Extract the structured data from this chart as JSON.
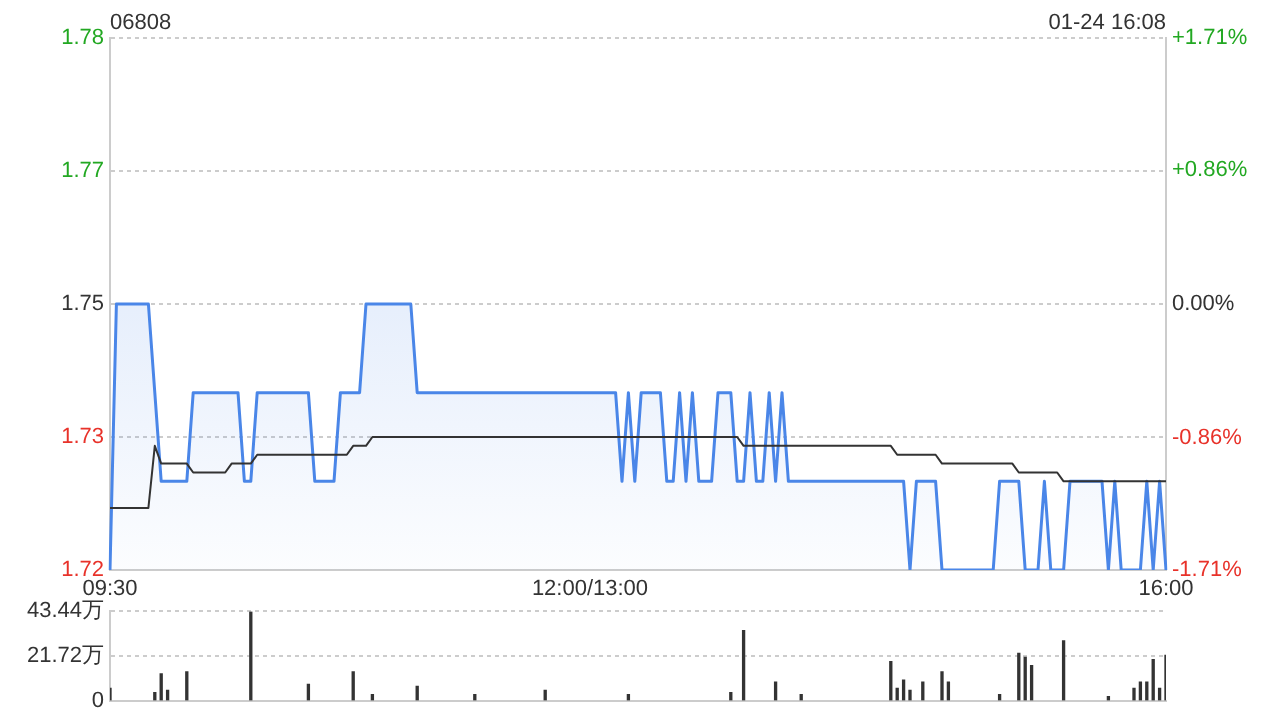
{
  "chart_data": [
    {
      "type": "line",
      "title": "06808",
      "annotations": [
        "01-24 16:08"
      ],
      "categories": [
        "09:30",
        null,
        null,
        null,
        null,
        null,
        null,
        null,
        null,
        null,
        null,
        null,
        null,
        null,
        null,
        null,
        null,
        null,
        null,
        null,
        null,
        null,
        null,
        null,
        null,
        null,
        null,
        null,
        null,
        null,
        null,
        null,
        null,
        null,
        null,
        null,
        null,
        null,
        null,
        null,
        null,
        null,
        null,
        null,
        null,
        null,
        null,
        null,
        null,
        null,
        null,
        null,
        null,
        null,
        null,
        null,
        null,
        null,
        null,
        null,
        null,
        null,
        null,
        null,
        null,
        null,
        null,
        null,
        null,
        null,
        null,
        null,
        null,
        null,
        null,
        "12:00/13:00",
        null,
        null,
        null,
        null,
        null,
        null,
        null,
        null,
        null,
        null,
        null,
        null,
        null,
        null,
        null,
        null,
        null,
        null,
        null,
        null,
        null,
        null,
        null,
        null,
        null,
        null,
        null,
        null,
        null,
        null,
        null,
        null,
        null,
        null,
        null,
        null,
        null,
        null,
        null,
        null,
        null,
        null,
        null,
        null,
        null,
        null,
        null,
        null,
        null,
        null,
        null,
        null,
        null,
        null,
        null,
        null,
        null,
        null,
        null,
        null,
        null,
        null,
        null,
        null,
        null,
        null,
        null,
        null,
        null,
        null,
        null,
        null,
        null,
        null,
        null,
        null,
        null,
        null,
        null,
        null,
        null,
        null,
        null,
        null,
        null,
        null,
        null,
        null,
        null,
        "16:00"
      ],
      "ylim": [
        1.72,
        1.78
      ],
      "yticks": [
        1.72,
        {
          "value": 1.735,
          "label": "1.73"
        },
        1.75,
        {
          "value": 1.765,
          "label": "1.77"
        },
        1.78
      ],
      "y2lim": [
        -1.71,
        1.71
      ],
      "y2ticks": [
        {
          "value": -1.71,
          "label": "-1.71%"
        },
        {
          "value": -0.86,
          "label": "-0.86%"
        },
        {
          "value": 0,
          "label": "0.00%"
        },
        {
          "value": 0.86,
          "label": "+0.86%"
        },
        {
          "value": 1.71,
          "label": "+1.71%"
        }
      ],
      "grid": "y",
      "series": [
        {
          "type": "area",
          "color": "#4a86e8",
          "values": [
            1.72,
            1.75,
            1.75,
            1.75,
            1.75,
            1.75,
            1.75,
            1.74,
            1.73,
            1.73,
            1.73,
            1.73,
            1.73,
            1.74,
            1.74,
            1.74,
            1.74,
            1.74,
            1.74,
            1.74,
            1.74,
            1.73,
            1.73,
            1.74,
            1.74,
            1.74,
            1.74,
            1.74,
            1.74,
            1.74,
            1.74,
            1.74,
            1.73,
            1.73,
            1.73,
            1.73,
            1.74,
            1.74,
            1.74,
            1.74,
            1.75,
            1.75,
            1.75,
            1.75,
            1.75,
            1.75,
            1.75,
            1.75,
            1.74,
            1.74,
            1.74,
            1.74,
            1.74,
            1.74,
            1.74,
            1.74,
            1.74,
            1.74,
            1.74,
            1.74,
            1.74,
            1.74,
            1.74,
            1.74,
            1.74,
            1.74,
            1.74,
            1.74,
            1.74,
            1.74,
            1.74,
            1.74,
            1.74,
            1.74,
            1.74,
            1.74,
            1.74,
            1.74,
            1.74,
            1.74,
            1.73,
            1.74,
            1.73,
            1.74,
            1.74,
            1.74,
            1.74,
            1.73,
            1.73,
            1.74,
            1.73,
            1.74,
            1.73,
            1.73,
            1.73,
            1.74,
            1.74,
            1.74,
            1.73,
            1.73,
            1.74,
            1.73,
            1.73,
            1.74,
            1.73,
            1.74,
            1.73,
            1.73,
            1.73,
            1.73,
            1.73,
            1.73,
            1.73,
            1.73,
            1.73,
            1.73,
            1.73,
            1.73,
            1.73,
            1.73,
            1.73,
            1.73,
            1.73,
            1.73,
            1.73,
            1.72,
            1.73,
            1.73,
            1.73,
            1.73,
            1.72,
            1.72,
            1.72,
            1.72,
            1.72,
            1.72,
            1.72,
            1.72,
            1.72,
            1.73,
            1.73,
            1.73,
            1.73,
            1.72,
            1.72,
            1.72,
            1.73,
            1.72,
            1.72,
            1.72,
            1.73,
            1.73,
            1.73,
            1.73,
            1.73,
            1.73,
            1.72,
            1.73,
            1.72,
            1.72,
            1.72,
            1.72,
            1.73,
            1.72,
            1.73,
            1.72
          ]
        },
        {
          "type": "line",
          "color": "#333333",
          "values": [
            1.727,
            1.727,
            1.727,
            1.727,
            1.727,
            1.727,
            1.727,
            1.734,
            1.732,
            1.732,
            1.732,
            1.732,
            1.732,
            1.731,
            1.731,
            1.731,
            1.731,
            1.731,
            1.731,
            1.732,
            1.732,
            1.732,
            1.732,
            1.733,
            1.733,
            1.733,
            1.733,
            1.733,
            1.733,
            1.733,
            1.733,
            1.733,
            1.733,
            1.733,
            1.733,
            1.733,
            1.733,
            1.733,
            1.734,
            1.734,
            1.734,
            1.735,
            1.735,
            1.735,
            1.735,
            1.735,
            1.735,
            1.735,
            1.735,
            1.735,
            1.735,
            1.735,
            1.735,
            1.735,
            1.735,
            1.735,
            1.735,
            1.735,
            1.735,
            1.735,
            1.735,
            1.735,
            1.735,
            1.735,
            1.735,
            1.735,
            1.735,
            1.735,
            1.735,
            1.735,
            1.735,
            1.735,
            1.735,
            1.735,
            1.735,
            1.735,
            1.735,
            1.735,
            1.735,
            1.735,
            1.735,
            1.735,
            1.735,
            1.735,
            1.735,
            1.735,
            1.735,
            1.735,
            1.735,
            1.735,
            1.735,
            1.735,
            1.735,
            1.735,
            1.735,
            1.735,
            1.735,
            1.735,
            1.735,
            1.734,
            1.734,
            1.734,
            1.734,
            1.734,
            1.734,
            1.734,
            1.734,
            1.734,
            1.734,
            1.734,
            1.734,
            1.734,
            1.734,
            1.734,
            1.734,
            1.734,
            1.734,
            1.734,
            1.734,
            1.734,
            1.734,
            1.734,
            1.734,
            1.733,
            1.733,
            1.733,
            1.733,
            1.733,
            1.733,
            1.733,
            1.732,
            1.732,
            1.732,
            1.732,
            1.732,
            1.732,
            1.732,
            1.732,
            1.732,
            1.732,
            1.732,
            1.732,
            1.731,
            1.731,
            1.731,
            1.731,
            1.731,
            1.731,
            1.731,
            1.73,
            1.73,
            1.73,
            1.73,
            1.73,
            1.73,
            1.73,
            1.73,
            1.73,
            1.73,
            1.73,
            1.73,
            1.73,
            1.73,
            1.73,
            1.73,
            1.73
          ]
        }
      ]
    },
    {
      "type": "bar",
      "color": "#333333",
      "tick_labels": "y",
      "grid": "y",
      "categories": [
        null,
        null,
        null,
        null,
        null,
        null,
        null,
        null,
        null,
        null,
        null,
        null,
        null,
        null,
        null,
        null,
        null,
        null,
        null,
        null,
        null,
        null,
        null,
        null,
        null,
        null,
        null,
        null,
        null,
        null,
        null,
        null,
        null,
        null,
        null,
        null,
        null,
        null,
        null,
        null,
        null,
        null,
        null,
        null,
        null,
        null,
        null,
        null,
        null,
        null,
        null,
        null,
        null,
        null,
        null,
        null,
        null,
        null,
        null,
        null,
        null,
        null,
        null,
        null,
        null,
        null,
        null,
        null,
        null,
        null,
        null,
        null,
        null,
        null,
        null,
        null,
        null,
        null,
        null,
        null,
        null,
        null,
        null,
        null,
        null,
        null,
        null,
        null,
        null,
        null,
        null,
        null,
        null,
        null,
        null,
        null,
        null,
        null,
        null,
        null,
        null,
        null,
        null,
        null,
        null,
        null,
        null,
        null,
        null,
        null,
        null,
        null,
        null,
        null,
        null,
        null,
        null,
        null,
        null,
        null,
        null,
        null,
        null,
        null,
        null,
        null,
        null,
        null,
        null,
        null,
        null,
        null,
        null,
        null,
        null,
        null,
        null,
        null,
        null,
        null,
        null,
        null,
        null,
        null,
        null,
        null,
        null,
        null,
        null,
        null,
        null,
        null,
        null,
        null,
        null,
        null,
        null,
        null,
        null,
        null,
        null,
        null,
        null,
        null,
        null,
        null
      ],
      "values": [
        6,
        null,
        null,
        null,
        null,
        null,
        null,
        4,
        13,
        5,
        null,
        null,
        14,
        null,
        null,
        null,
        null,
        null,
        null,
        null,
        null,
        null,
        43,
        null,
        null,
        null,
        null,
        null,
        null,
        null,
        null,
        8,
        null,
        null,
        null,
        null,
        null,
        null,
        14,
        null,
        null,
        3,
        null,
        null,
        null,
        null,
        null,
        null,
        7,
        null,
        null,
        null,
        null,
        null,
        null,
        null,
        null,
        3,
        null,
        null,
        null,
        null,
        null,
        null,
        null,
        null,
        null,
        null,
        5,
        null,
        null,
        null,
        null,
        null,
        null,
        null,
        null,
        null,
        null,
        null,
        null,
        3,
        null,
        null,
        null,
        null,
        null,
        null,
        null,
        null,
        null,
        null,
        null,
        null,
        null,
        null,
        null,
        4,
        null,
        34,
        null,
        null,
        null,
        null,
        9,
        null,
        null,
        null,
        3,
        null,
        null,
        null,
        null,
        null,
        null,
        null,
        null,
        null,
        null,
        null,
        null,
        null,
        19,
        6,
        10,
        5,
        null,
        9,
        null,
        null,
        14,
        9,
        null,
        null,
        null,
        null,
        null,
        null,
        null,
        3,
        null,
        null,
        23,
        21,
        17,
        null,
        null,
        null,
        null,
        29,
        null,
        null,
        null,
        null,
        null,
        null,
        2,
        null,
        null,
        null,
        6,
        9,
        9,
        20,
        6,
        22
      ],
      "ylim": [
        0,
        43.44
      ],
      "yticks": [
        0,
        {
          "value": 21.72,
          "label": "21.72万"
        },
        {
          "value": 43.44,
          "label": "43.44万"
        }
      ]
    }
  ]
}
